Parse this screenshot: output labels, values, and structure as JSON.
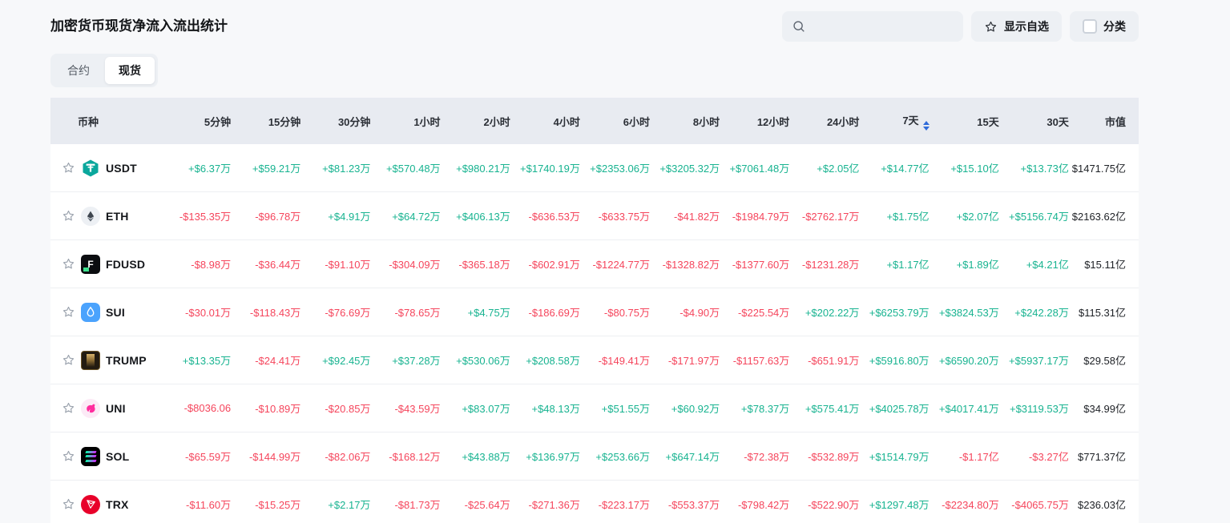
{
  "page": {
    "title": "加密货币现货净流入流出统计",
    "tabs": [
      {
        "label": "合约",
        "active": false
      },
      {
        "label": "现货",
        "active": true
      }
    ],
    "search": {
      "placeholder": "",
      "value": ""
    },
    "controls": {
      "favorites_label": "显示自选",
      "category_label": "分类",
      "category_checked": false
    }
  },
  "colors": {
    "positive": "#17b390",
    "negative": "#f5455c",
    "sort_icon": "#2f6bd9",
    "header_bg": "#e8ebf1"
  },
  "table": {
    "columns": [
      "币种",
      "5分钟",
      "15分钟",
      "30分钟",
      "1小时",
      "2小时",
      "4小时",
      "6小时",
      "8小时",
      "12小时",
      "24小时",
      "7天",
      "15天",
      "30天",
      "市值"
    ],
    "sorted_by": "7天",
    "rows": [
      {
        "symbol": "USDT",
        "icon": "usdt-icon",
        "values": [
          "+$6.37万",
          "+$59.21万",
          "+$81.23万",
          "+$570.48万",
          "+$980.21万",
          "+$1740.19万",
          "+$2353.06万",
          "+$3205.32万",
          "+$7061.48万",
          "+$2.05亿",
          "+$14.77亿",
          "+$15.10亿",
          "+$13.73亿"
        ],
        "market_cap": "$1471.75亿"
      },
      {
        "symbol": "ETH",
        "icon": "eth-icon",
        "values": [
          "-$135.35万",
          "-$96.78万",
          "+$4.91万",
          "+$64.72万",
          "+$406.13万",
          "-$636.53万",
          "-$633.75万",
          "-$41.82万",
          "-$1984.79万",
          "-$2762.17万",
          "+$1.75亿",
          "+$2.07亿",
          "+$5156.74万"
        ],
        "market_cap": "$2163.62亿"
      },
      {
        "symbol": "FDUSD",
        "icon": "fdusd-icon",
        "values": [
          "-$8.98万",
          "-$36.44万",
          "-$91.10万",
          "-$304.09万",
          "-$365.18万",
          "-$602.91万",
          "-$1224.77万",
          "-$1328.82万",
          "-$1377.60万",
          "-$1231.28万",
          "+$1.17亿",
          "+$1.89亿",
          "+$4.21亿"
        ],
        "market_cap": "$15.11亿"
      },
      {
        "symbol": "SUI",
        "icon": "sui-icon",
        "values": [
          "-$30.01万",
          "-$118.43万",
          "-$76.69万",
          "-$78.65万",
          "+$4.75万",
          "-$186.69万",
          "-$80.75万",
          "-$4.90万",
          "-$225.54万",
          "+$202.22万",
          "+$6253.79万",
          "+$3824.53万",
          "+$242.28万"
        ],
        "market_cap": "$115.31亿"
      },
      {
        "symbol": "TRUMP",
        "icon": "trump-icon",
        "values": [
          "+$13.35万",
          "-$24.41万",
          "+$92.45万",
          "+$37.28万",
          "+$530.06万",
          "+$208.58万",
          "-$149.41万",
          "-$171.97万",
          "-$1157.63万",
          "-$651.91万",
          "+$5916.80万",
          "+$6590.20万",
          "+$5937.17万"
        ],
        "market_cap": "$29.58亿"
      },
      {
        "symbol": "UNI",
        "icon": "uni-icon",
        "values": [
          "-$8036.06",
          "-$10.89万",
          "-$20.85万",
          "-$43.59万",
          "+$83.07万",
          "+$48.13万",
          "+$51.55万",
          "+$60.92万",
          "+$78.37万",
          "+$575.41万",
          "+$4025.78万",
          "+$4017.41万",
          "+$3119.53万"
        ],
        "market_cap": "$34.99亿"
      },
      {
        "symbol": "SOL",
        "icon": "sol-icon",
        "values": [
          "-$65.59万",
          "-$144.99万",
          "-$82.06万",
          "-$168.12万",
          "+$43.88万",
          "+$136.97万",
          "+$253.66万",
          "+$647.14万",
          "-$72.38万",
          "-$532.89万",
          "+$1514.79万",
          "-$1.17亿",
          "-$3.27亿"
        ],
        "market_cap": "$771.37亿"
      },
      {
        "symbol": "TRX",
        "icon": "trx-icon",
        "values": [
          "-$11.60万",
          "-$15.25万",
          "+$2.17万",
          "-$81.73万",
          "-$25.64万",
          "-$271.36万",
          "-$223.17万",
          "-$553.37万",
          "-$798.42万",
          "-$522.90万",
          "+$1297.48万",
          "-$2234.80万",
          "-$4065.75万"
        ],
        "market_cap": "$236.03亿"
      }
    ]
  }
}
